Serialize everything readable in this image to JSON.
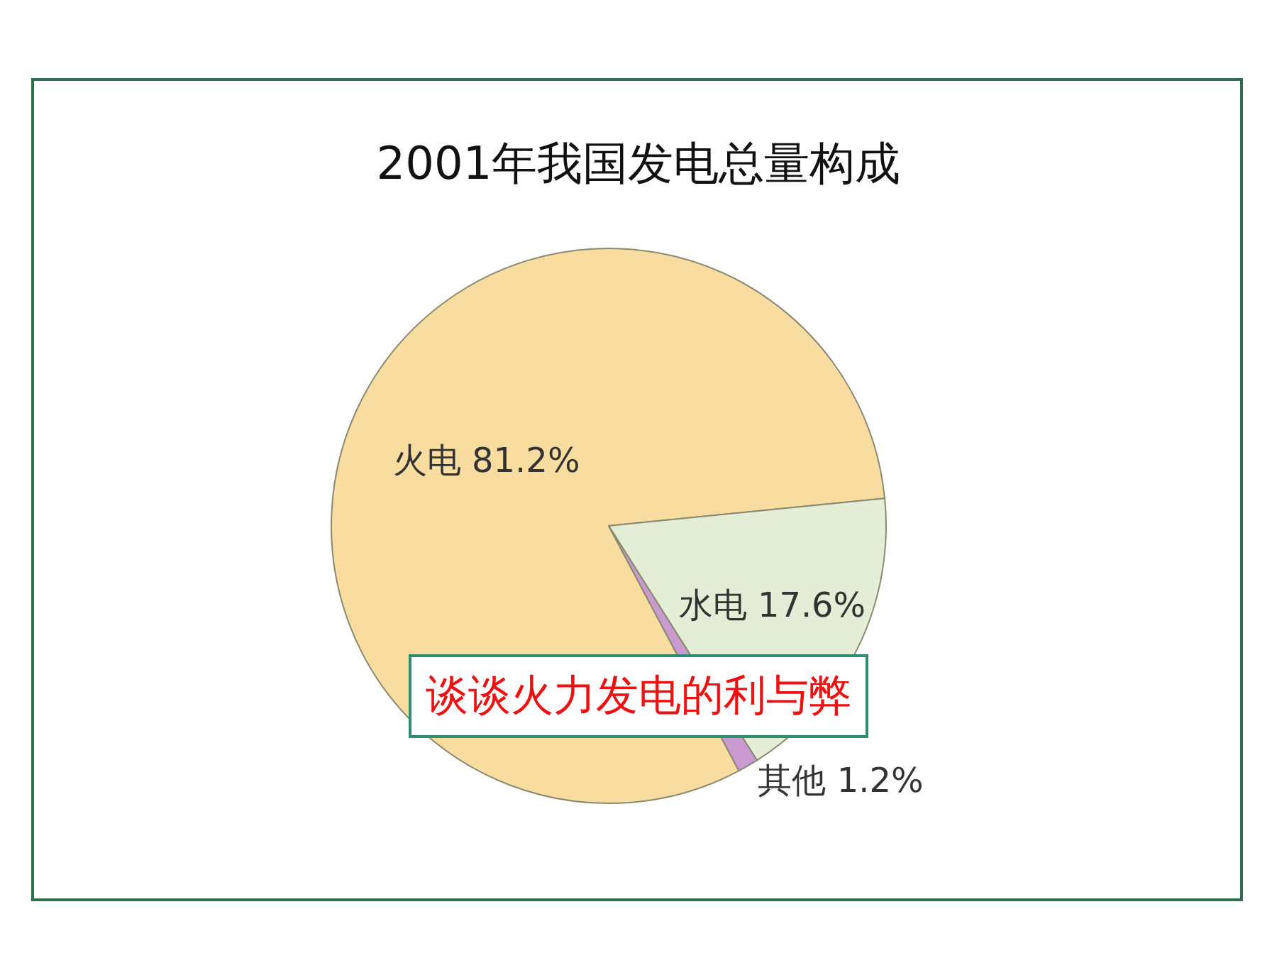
{
  "chart_data": {
    "type": "pie",
    "title": "2001年我国发电总量构成",
    "categories": [
      "火电",
      "水电",
      "其他"
    ],
    "values": [
      81.2,
      17.6,
      1.2
    ],
    "colors": [
      "#f9dca0",
      "#e4eed6",
      "#c99bd0"
    ],
    "value_labels": [
      "81.2%",
      "17.6%",
      "1.2%"
    ],
    "annotations": [
      "谈谈火力发电的利与弊"
    ]
  }
}
